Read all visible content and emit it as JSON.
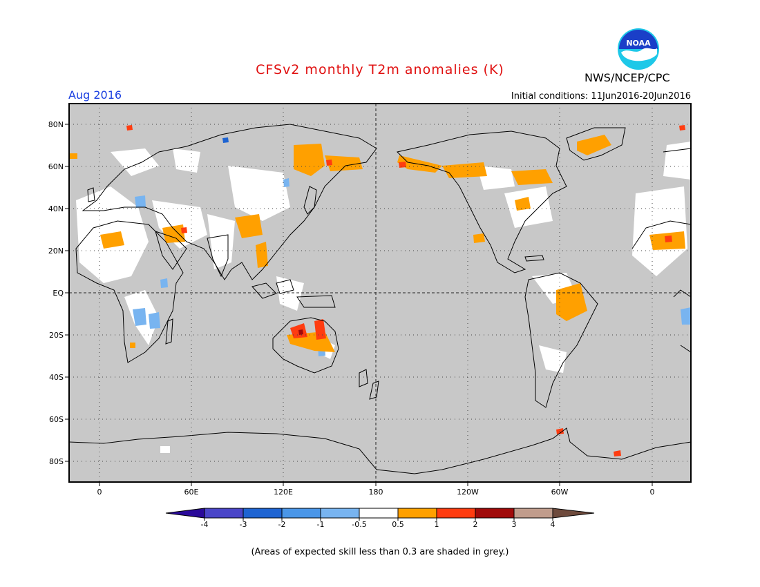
{
  "header": {
    "title": "CFSv2 monthly T2m anomalies (K)",
    "period": "Aug 2016",
    "initial_conditions": "Initial conditions: 11Jun2016-20Jun2016",
    "agency": "NWS/NCEP/CPC",
    "logo_text": "NOAA"
  },
  "map": {
    "lon_labels": [
      "0",
      "60E",
      "120E",
      "180",
      "120W",
      "60W",
      "0"
    ],
    "lat_labels": [
      "80N",
      "60N",
      "40N",
      "20N",
      "EQ",
      "20S",
      "40S",
      "60S",
      "80S"
    ],
    "ocean_color": "#c8c8c8"
  },
  "legend": {
    "labels": [
      "-4",
      "-3",
      "-2",
      "-1",
      "-0.5",
      "0.5",
      "1",
      "2",
      "3",
      "4"
    ],
    "colors": [
      "#2a0a9a",
      "#4a45c8",
      "#1e64d2",
      "#4a96e8",
      "#78b4f0",
      "#ffffff",
      "#ffa000",
      "#ff3c10",
      "#a00a0a",
      "#c09c8c",
      "#6e4a3c"
    ]
  },
  "footnote": "(Areas of expected skill less than 0.3 are shaded in grey.)"
}
